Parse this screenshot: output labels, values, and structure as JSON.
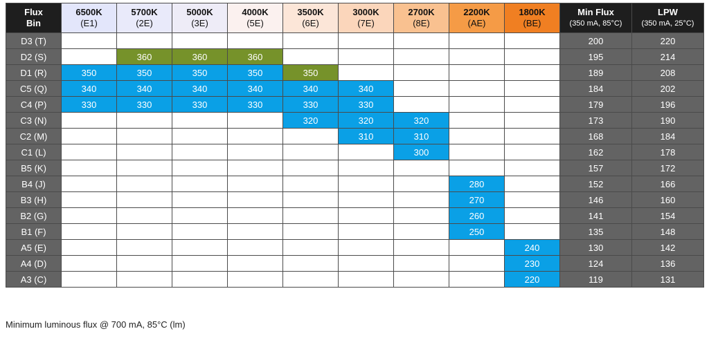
{
  "header": {
    "corner": {
      "line1": "Flux",
      "line2": "Bin"
    },
    "cct": [
      {
        "temp": "6500K",
        "code": "(E1)",
        "color": "#e3e6fb"
      },
      {
        "temp": "5700K",
        "code": "(2E)",
        "color": "#e9eafa"
      },
      {
        "temp": "5000K",
        "code": "(3E)",
        "color": "#eeecf7"
      },
      {
        "temp": "4000K",
        "code": "(5E)",
        "color": "#fbf1ef"
      },
      {
        "temp": "3500K",
        "code": "(6E)",
        "color": "#fce6d8"
      },
      {
        "temp": "3000K",
        "code": "(7E)",
        "color": "#fbd6bb"
      },
      {
        "temp": "2700K",
        "code": "(8E)",
        "color": "#f9c190"
      },
      {
        "temp": "2200K",
        "code": "(AE)",
        "color": "#f59b46"
      },
      {
        "temp": "1800K",
        "code": "(BE)",
        "color": "#f07f22"
      }
    ],
    "min_flux": {
      "title": "Min Flux",
      "sub": "(350 mA, 85°C)"
    },
    "lpw": {
      "title": "LPW",
      "sub": "(350 mA, 25°C)"
    }
  },
  "rows": [
    {
      "bin": "D3 (T)",
      "cells": [
        "",
        "",
        "",
        "",
        "",
        "",
        "",
        "",
        ""
      ],
      "min_flux": "200",
      "lpw": "220"
    },
    {
      "bin": "D2 (S)",
      "cells": [
        "",
        "360",
        "360",
        "360",
        "",
        "",
        "",
        "",
        ""
      ],
      "min_flux": "195",
      "lpw": "214"
    },
    {
      "bin": "D1 (R)",
      "cells": [
        "350",
        "350",
        "350",
        "350",
        "350",
        "",
        "",
        "",
        ""
      ],
      "min_flux": "189",
      "lpw": "208"
    },
    {
      "bin": "C5 (Q)",
      "cells": [
        "340",
        "340",
        "340",
        "340",
        "340",
        "340",
        "",
        "",
        ""
      ],
      "min_flux": "184",
      "lpw": "202"
    },
    {
      "bin": "C4 (P)",
      "cells": [
        "330",
        "330",
        "330",
        "330",
        "330",
        "330",
        "",
        "",
        ""
      ],
      "min_flux": "179",
      "lpw": "196"
    },
    {
      "bin": "C3 (N)",
      "cells": [
        "",
        "",
        "",
        "",
        "320",
        "320",
        "320",
        "",
        ""
      ],
      "min_flux": "173",
      "lpw": "190"
    },
    {
      "bin": "C2 (M)",
      "cells": [
        "",
        "",
        "",
        "",
        "",
        "310",
        "310",
        "",
        ""
      ],
      "min_flux": "168",
      "lpw": "184"
    },
    {
      "bin": "C1 (L)",
      "cells": [
        "",
        "",
        "",
        "",
        "",
        "",
        "300",
        "",
        ""
      ],
      "min_flux": "162",
      "lpw": "178"
    },
    {
      "bin": "B5 (K)",
      "cells": [
        "",
        "",
        "",
        "",
        "",
        "",
        "",
        "",
        ""
      ],
      "min_flux": "157",
      "lpw": "172"
    },
    {
      "bin": "B4 (J)",
      "cells": [
        "",
        "",
        "",
        "",
        "",
        "",
        "",
        "280",
        ""
      ],
      "min_flux": "152",
      "lpw": "166"
    },
    {
      "bin": "B3 (H)",
      "cells": [
        "",
        "",
        "",
        "",
        "",
        "",
        "",
        "270",
        ""
      ],
      "min_flux": "146",
      "lpw": "160"
    },
    {
      "bin": "B2 (G)",
      "cells": [
        "",
        "",
        "",
        "",
        "",
        "",
        "",
        "260",
        ""
      ],
      "min_flux": "141",
      "lpw": "154"
    },
    {
      "bin": "B1 (F)",
      "cells": [
        "",
        "",
        "",
        "",
        "",
        "",
        "",
        "250",
        ""
      ],
      "min_flux": "135",
      "lpw": "148"
    },
    {
      "bin": "A5 (E)",
      "cells": [
        "",
        "",
        "",
        "",
        "",
        "",
        "",
        "",
        "240"
      ],
      "min_flux": "130",
      "lpw": "142"
    },
    {
      "bin": "A4 (D)",
      "cells": [
        "",
        "",
        "",
        "",
        "",
        "",
        "",
        "",
        "230"
      ],
      "min_flux": "124",
      "lpw": "136"
    },
    {
      "bin": "A3 (C)",
      "cells": [
        "",
        "",
        "",
        "",
        "",
        "",
        "",
        "",
        "220"
      ],
      "min_flux": "119",
      "lpw": "131"
    }
  ],
  "highlight": {
    "green_cells": [
      [
        1,
        1
      ],
      [
        1,
        3
      ]
    ],
    "colors": {
      "blue": "#0aa0e6",
      "green": "#76922a",
      "bin_bg": "#636363",
      "header_dark": "#1e1e1e"
    }
  },
  "caption": "Minimum luminous flux @ 700 mA, 85°C (lm)"
}
